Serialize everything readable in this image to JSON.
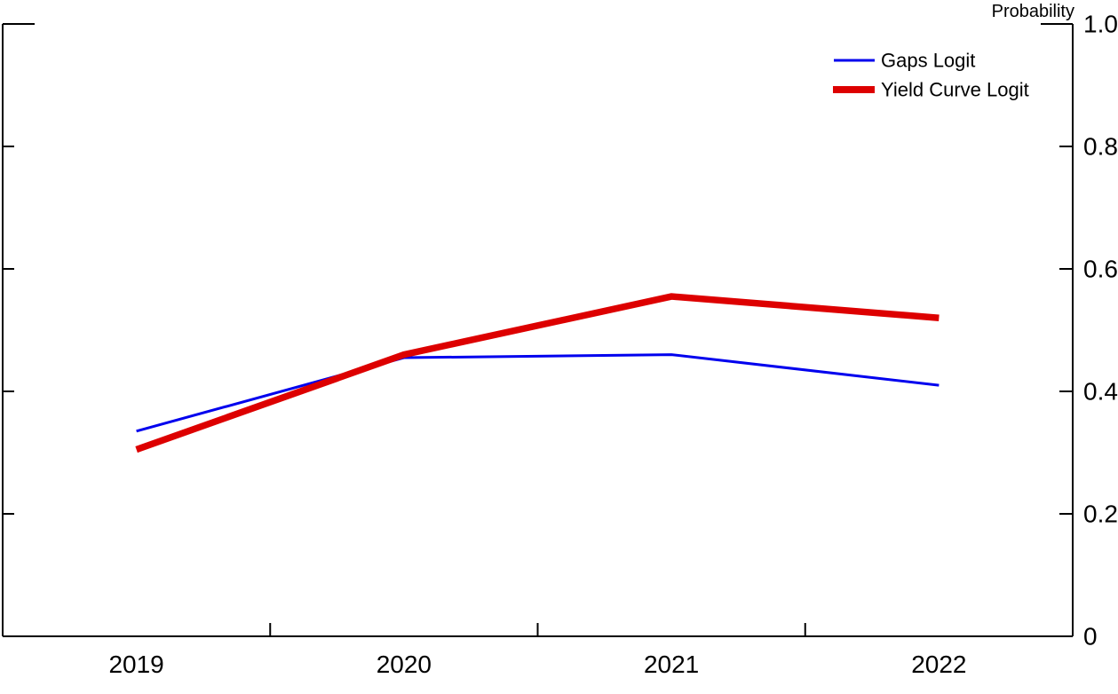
{
  "chart_data": {
    "type": "line",
    "right_axis_title": "Probability",
    "x_categories": [
      "2019",
      "2020",
      "2021",
      "2022"
    ],
    "y_tick_labels": [
      "1.0",
      "0.8",
      "0.6",
      "0.4",
      "0.2",
      "0"
    ],
    "ylim": [
      0,
      1.0
    ],
    "grid": false,
    "legend": {
      "position": "top-right",
      "entries": [
        "Gaps Logit",
        "Yield Curve Logit"
      ]
    },
    "series": [
      {
        "name": "Gaps Logit",
        "color": "#0000ee",
        "line_width": 3,
        "values": [
          0.335,
          0.455,
          0.46,
          0.41
        ]
      },
      {
        "name": "Yield Curve Logit",
        "color": "#dd0000",
        "line_width": 7.5,
        "values": [
          0.305,
          0.46,
          0.555,
          0.52
        ]
      }
    ],
    "colors": {
      "axis": "#000000",
      "background": "#ffffff"
    }
  }
}
